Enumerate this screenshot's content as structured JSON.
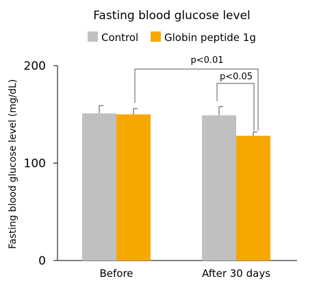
{
  "chart_data": {
    "type": "bar",
    "title": "Fasting blood glucose level",
    "ylabel": "Fasting blood glucose level (mg/dL)",
    "xlabel": "",
    "categories": [
      "Before",
      "After 30 days"
    ],
    "series": [
      {
        "name": "Control",
        "color": "#c0c0c0",
        "values": [
          151,
          149
        ],
        "errors": [
          8,
          9
        ]
      },
      {
        "name": "Globin peptide 1g",
        "color": "#f7a800",
        "values": [
          150,
          128
        ],
        "errors": [
          6,
          4
        ]
      }
    ],
    "ylim": [
      0,
      200
    ],
    "yticks": [
      0,
      100,
      200
    ],
    "legend_position": "top",
    "grid": false,
    "annotations": [
      {
        "label": "p<0.01",
        "from": "Before / Globin peptide 1g",
        "to": "After 30 days / Globin peptide 1g"
      },
      {
        "label": "p<0.05",
        "from": "After 30 days / Control",
        "to": "After 30 days / Globin peptide 1g"
      }
    ]
  }
}
